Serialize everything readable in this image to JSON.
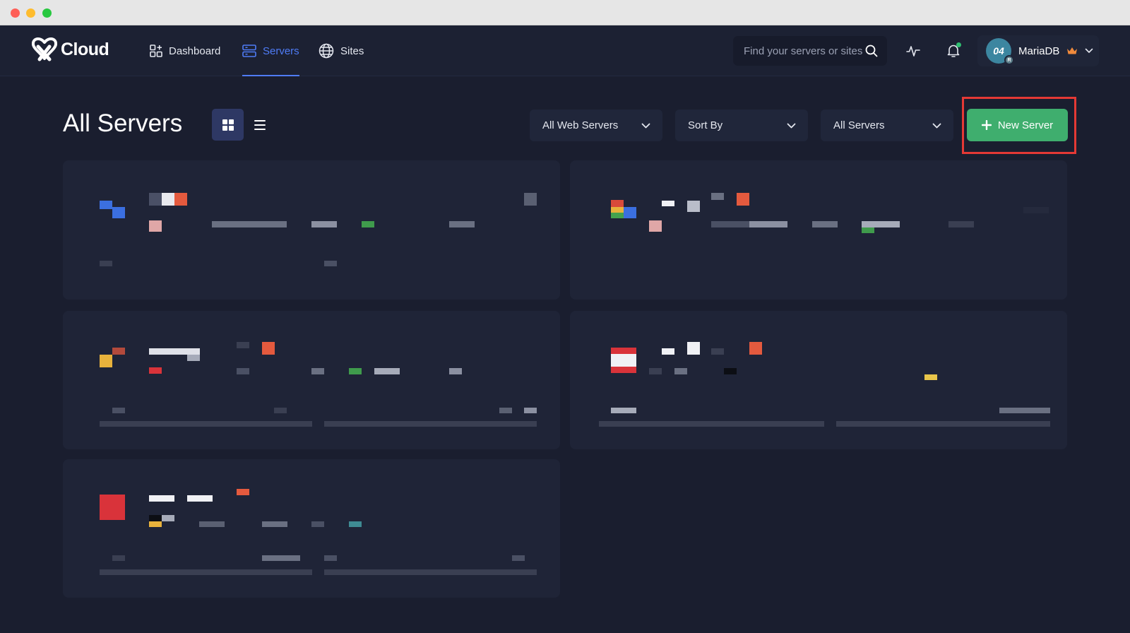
{
  "window_controls": [
    "close",
    "minimize",
    "maximize"
  ],
  "brand": {
    "name": "Cloud"
  },
  "nav": {
    "items": [
      {
        "label": "Dashboard",
        "icon": "dashboard-grid-icon",
        "active": false
      },
      {
        "label": "Servers",
        "icon": "server-icon",
        "active": true
      },
      {
        "label": "Sites",
        "icon": "globe-icon",
        "active": false
      }
    ]
  },
  "search": {
    "placeholder": "Find your servers or sites"
  },
  "user": {
    "avatar_initials": "04",
    "avatar_badge": "R",
    "name": "MariaDB",
    "crown_icon": "crown-icon"
  },
  "colors": {
    "bg": "#1a1e2f",
    "nav_bg": "#1c2133",
    "card_bg": "#1f2437",
    "accent_blue": "#4f7cf7",
    "primary_green": "#3fae6e",
    "highlight_red": "#e53935",
    "notification_dot": "#2fbf71"
  },
  "page": {
    "title": "All Servers",
    "view_modes": [
      "grid",
      "list"
    ],
    "active_view": "grid"
  },
  "filters": {
    "web_servers": "All Web Servers",
    "sort": "Sort By",
    "servers": "All Servers"
  },
  "actions": {
    "new_server": "New Server"
  },
  "server_cards": {
    "count": 5,
    "content": "obscured (pixelated)"
  }
}
